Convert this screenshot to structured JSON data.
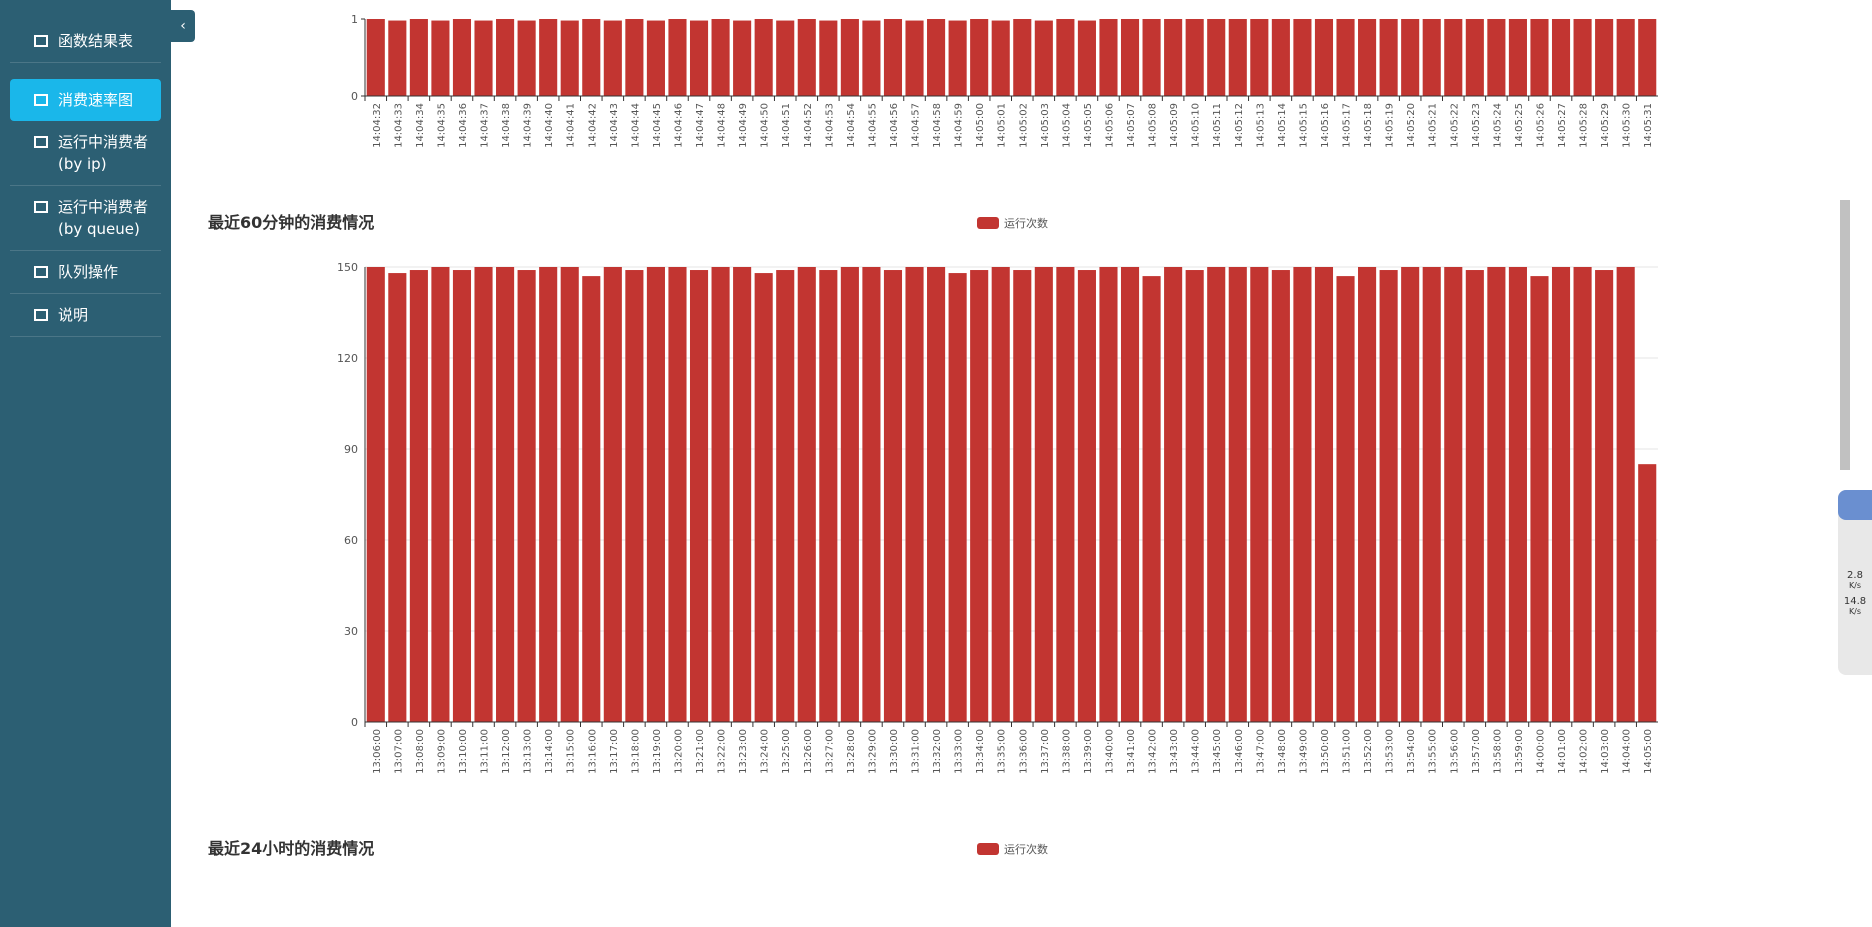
{
  "sidebar": {
    "items": [
      "函数结果表",
      "消费速率图",
      "运行中消费者 (by ip)",
      "运行中消费者 (by queue)",
      "队列操作",
      "说明"
    ],
    "active": 1
  },
  "speed_widget": {
    "up": "2.8",
    "up_unit": "K/s",
    "down": "14.8",
    "down_unit": "K/s"
  },
  "chart_data": [
    {
      "type": "bar",
      "color": "#c23531",
      "categories": [
        "14:04:32",
        "14:04:33",
        "14:04:34",
        "14:04:35",
        "14:04:36",
        "14:04:37",
        "14:04:38",
        "14:04:39",
        "14:04:40",
        "14:04:41",
        "14:04:42",
        "14:04:43",
        "14:04:44",
        "14:04:45",
        "14:04:46",
        "14:04:47",
        "14:04:48",
        "14:04:49",
        "14:04:50",
        "14:04:51",
        "14:04:52",
        "14:04:53",
        "14:04:54",
        "14:04:55",
        "14:04:56",
        "14:04:57",
        "14:04:58",
        "14:04:59",
        "14:05:00",
        "14:05:01",
        "14:05:02",
        "14:05:03",
        "14:05:04",
        "14:05:05",
        "14:05:06",
        "14:05:07",
        "14:05:08",
        "14:05:09",
        "14:05:10",
        "14:05:11",
        "14:05:12",
        "14:05:13",
        "14:05:14",
        "14:05:15",
        "14:05:16",
        "14:05:17",
        "14:05:18",
        "14:05:19",
        "14:05:20",
        "14:05:21",
        "14:05:22",
        "14:05:23",
        "14:05:24",
        "14:05:25",
        "14:05:26",
        "14:05:27",
        "14:05:28",
        "14:05:29",
        "14:05:30",
        "14:05:31"
      ],
      "values": [
        1,
        0.98,
        1,
        0.98,
        1,
        0.98,
        1,
        0.98,
        1,
        0.98,
        1,
        0.98,
        1,
        0.98,
        1,
        0.98,
        1,
        0.98,
        1,
        0.98,
        1,
        0.98,
        1,
        0.98,
        1,
        0.98,
        1,
        0.98,
        1,
        0.98,
        1,
        0.98,
        1,
        0.98,
        1,
        1,
        1,
        1,
        1,
        1,
        1,
        1,
        1,
        1,
        1,
        1,
        1,
        1,
        1,
        1,
        1,
        1,
        1,
        1,
        1,
        1,
        1,
        1,
        1,
        1
      ],
      "ylim": [
        0,
        1
      ],
      "yticks": [
        0,
        1
      ]
    },
    {
      "type": "bar",
      "title": "最近60分钟的消费情况",
      "categories": [
        "13:06:00",
        "13:07:00",
        "13:08:00",
        "13:09:00",
        "13:10:00",
        "13:11:00",
        "13:12:00",
        "13:13:00",
        "13:14:00",
        "13:15:00",
        "13:16:00",
        "13:17:00",
        "13:18:00",
        "13:19:00",
        "13:20:00",
        "13:21:00",
        "13:22:00",
        "13:23:00",
        "13:24:00",
        "13:25:00",
        "13:26:00",
        "13:27:00",
        "13:28:00",
        "13:29:00",
        "13:30:00",
        "13:31:00",
        "13:32:00",
        "13:33:00",
        "13:34:00",
        "13:35:00",
        "13:36:00",
        "13:37:00",
        "13:38:00",
        "13:39:00",
        "13:40:00",
        "13:41:00",
        "13:42:00",
        "13:43:00",
        "13:44:00",
        "13:45:00",
        "13:46:00",
        "13:47:00",
        "13:48:00",
        "13:49:00",
        "13:50:00",
        "13:51:00",
        "13:52:00",
        "13:53:00",
        "13:54:00",
        "13:55:00",
        "13:56:00",
        "13:57:00",
        "13:58:00",
        "13:59:00",
        "14:00:00",
        "14:01:00",
        "14:02:00",
        "14:03:00",
        "14:04:00",
        "14:05:00"
      ],
      "series": [
        {
          "name": "运行次数",
          "color": "#c23531",
          "values": [
            150,
            148,
            149,
            150,
            149,
            150,
            150,
            149,
            150,
            150,
            147,
            150,
            149,
            150,
            150,
            149,
            150,
            150,
            148,
            149,
            150,
            149,
            150,
            150,
            149,
            150,
            150,
            148,
            149,
            150,
            149,
            150,
            150,
            149,
            150,
            150,
            147,
            150,
            149,
            150,
            150,
            150,
            149,
            150,
            150,
            147,
            150,
            149,
            150,
            150,
            150,
            149,
            150,
            150,
            147,
            150,
            150,
            149,
            150,
            85
          ]
        }
      ],
      "ylim": [
        0,
        150
      ],
      "yticks": [
        0,
        30,
        60,
        90,
        120,
        150
      ],
      "grid": true
    },
    {
      "type": "bar",
      "title": "最近24小时的消费情况",
      "series": [
        {
          "name": "运行次数",
          "color": "#c23531"
        }
      ]
    }
  ]
}
